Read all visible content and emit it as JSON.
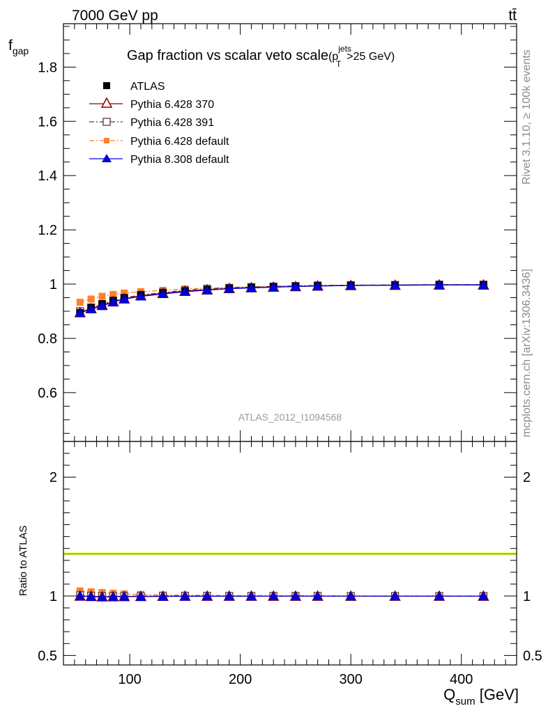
{
  "header": {
    "energy_label": "7000 GeV pp",
    "process_label": "tt̄"
  },
  "main_panel": {
    "title": "Gap fraction vs scalar veto scale",
    "title_cut": "(p",
    "title_cut_sup": "jets",
    "title_cut_sub": "T",
    "title_cut_rest": ">25 GeV)",
    "ylabel": "f",
    "ylabel_sub": "gap",
    "analysis_id": "ATLAS_2012_I1094568"
  },
  "ratio_panel": {
    "ylabel": "Ratio to ATLAS"
  },
  "x_axis": {
    "label": "Q",
    "label_sub": "sum",
    "label_rest": " [GeV]"
  },
  "side_labels": {
    "rivet": "Rivet 3.1.10, ≥ 100k events",
    "mcplots": "mcplots.cern.ch [arXiv:1306.3436]"
  },
  "colors": {
    "atlas": "#000000",
    "pythia6_370": "#8b0000",
    "pythia6_391": "#5a3a3a",
    "pythia6_default": "#ff7f2a",
    "pythia8_default": "#0000dd",
    "ratio_band": "#ffff66",
    "ratio_line": "#2e9f2e"
  },
  "chart_data": [
    {
      "type": "line",
      "panel": "main",
      "title": "Gap fraction vs scalar veto scale (p_T^jets>25 GeV)",
      "xlabel": "Q_sum [GeV]",
      "ylabel": "f_gap",
      "xlim": [
        40,
        450
      ],
      "ylim": [
        0.42,
        1.96
      ],
      "x_ticks": [
        100,
        200,
        300,
        400
      ],
      "y_ticks": [
        0.6,
        0.8,
        1,
        1.2,
        1.4,
        1.6,
        1.8
      ],
      "y_tick_labels": [
        "0.6",
        "0.8",
        "1",
        "1.2",
        "1.4",
        "1.6",
        "1.8"
      ],
      "legend_position": "top-left",
      "x": [
        55,
        65,
        75,
        85,
        95,
        110,
        130,
        150,
        170,
        190,
        210,
        230,
        250,
        270,
        300,
        340,
        380,
        420
      ],
      "series": [
        {
          "name": "ATLAS",
          "marker": "filled-square",
          "color": "#000000",
          "values": [
            0.895,
            0.913,
            0.928,
            0.94,
            0.95,
            0.96,
            0.968,
            0.975,
            0.98,
            0.985,
            0.988,
            0.99,
            0.992,
            0.994,
            0.996,
            0.997,
            0.998,
            0.998
          ]
        },
        {
          "name": "Pythia 6.428 370",
          "marker": "open-triangle",
          "line": "solid",
          "color": "#8b0000",
          "values": [
            0.895,
            0.91,
            0.922,
            0.935,
            0.946,
            0.957,
            0.966,
            0.974,
            0.979,
            0.984,
            0.987,
            0.989,
            0.991,
            0.993,
            0.995,
            0.996,
            0.997,
            0.997
          ]
        },
        {
          "name": "Pythia 6.428 391",
          "marker": "open-square",
          "line": "dash-dot",
          "color": "#5a3a3a",
          "values": [
            0.9,
            0.914,
            0.926,
            0.939,
            0.949,
            0.96,
            0.969,
            0.977,
            0.982,
            0.986,
            0.989,
            0.991,
            0.993,
            0.995,
            0.996,
            0.997,
            0.998,
            0.998
          ]
        },
        {
          "name": "Pythia 6.428 default",
          "marker": "filled-square",
          "line": "dash-dot",
          "color": "#ff7f2a",
          "values": [
            0.933,
            0.945,
            0.955,
            0.962,
            0.967,
            0.972,
            0.977,
            0.982,
            0.985,
            0.988,
            0.99,
            0.992,
            0.994,
            0.995,
            0.996,
            0.997,
            0.998,
            0.998
          ]
        },
        {
          "name": "Pythia 8.308 default",
          "marker": "filled-triangle",
          "line": "solid",
          "color": "#0000dd",
          "values": [
            0.894,
            0.908,
            0.92,
            0.934,
            0.945,
            0.955,
            0.964,
            0.972,
            0.978,
            0.983,
            0.986,
            0.989,
            0.991,
            0.993,
            0.995,
            0.996,
            0.997,
            0.997
          ]
        }
      ]
    },
    {
      "type": "line",
      "panel": "ratio",
      "ylabel": "Ratio to ATLAS",
      "xlim": [
        40,
        450
      ],
      "ylim": [
        0.42,
        2.3
      ],
      "y_ticks": [
        0.5,
        1,
        2
      ],
      "y_tick_labels": [
        "0.5",
        "1",
        "2"
      ],
      "x": [
        55,
        65,
        75,
        85,
        95,
        110,
        130,
        150,
        170,
        190,
        210,
        230,
        250,
        270,
        300,
        340,
        380,
        420
      ],
      "series": [
        {
          "name": "Pythia 6.428 370",
          "color": "#8b0000",
          "values": [
            1.0,
            0.997,
            0.994,
            0.995,
            0.996,
            0.997,
            0.998,
            0.999,
            0.999,
            0.999,
            0.999,
            0.999,
            0.999,
            0.999,
            0.999,
            0.999,
            0.999,
            0.999
          ]
        },
        {
          "name": "Pythia 6.428 391",
          "color": "#5a3a3a",
          "values": [
            1.006,
            1.001,
            0.998,
            0.999,
            0.999,
            1.0,
            1.001,
            1.002,
            1.002,
            1.001,
            1.001,
            1.001,
            1.001,
            1.001,
            1.0,
            1.0,
            1.0,
            1.0
          ]
        },
        {
          "name": "Pythia 6.428 default",
          "color": "#ff7f2a",
          "values": [
            1.043,
            1.035,
            1.029,
            1.023,
            1.018,
            1.013,
            1.009,
            1.007,
            1.005,
            1.003,
            1.002,
            1.002,
            1.002,
            1.001,
            1.0,
            1.0,
            1.0,
            1.0
          ]
        },
        {
          "name": "Pythia 8.308 default",
          "color": "#0000dd",
          "values": [
            0.999,
            0.994,
            0.991,
            0.994,
            0.995,
            0.995,
            0.996,
            0.997,
            0.998,
            0.998,
            0.998,
            0.999,
            0.999,
            0.999,
            0.999,
            0.999,
            0.999,
            0.999
          ]
        }
      ]
    }
  ]
}
